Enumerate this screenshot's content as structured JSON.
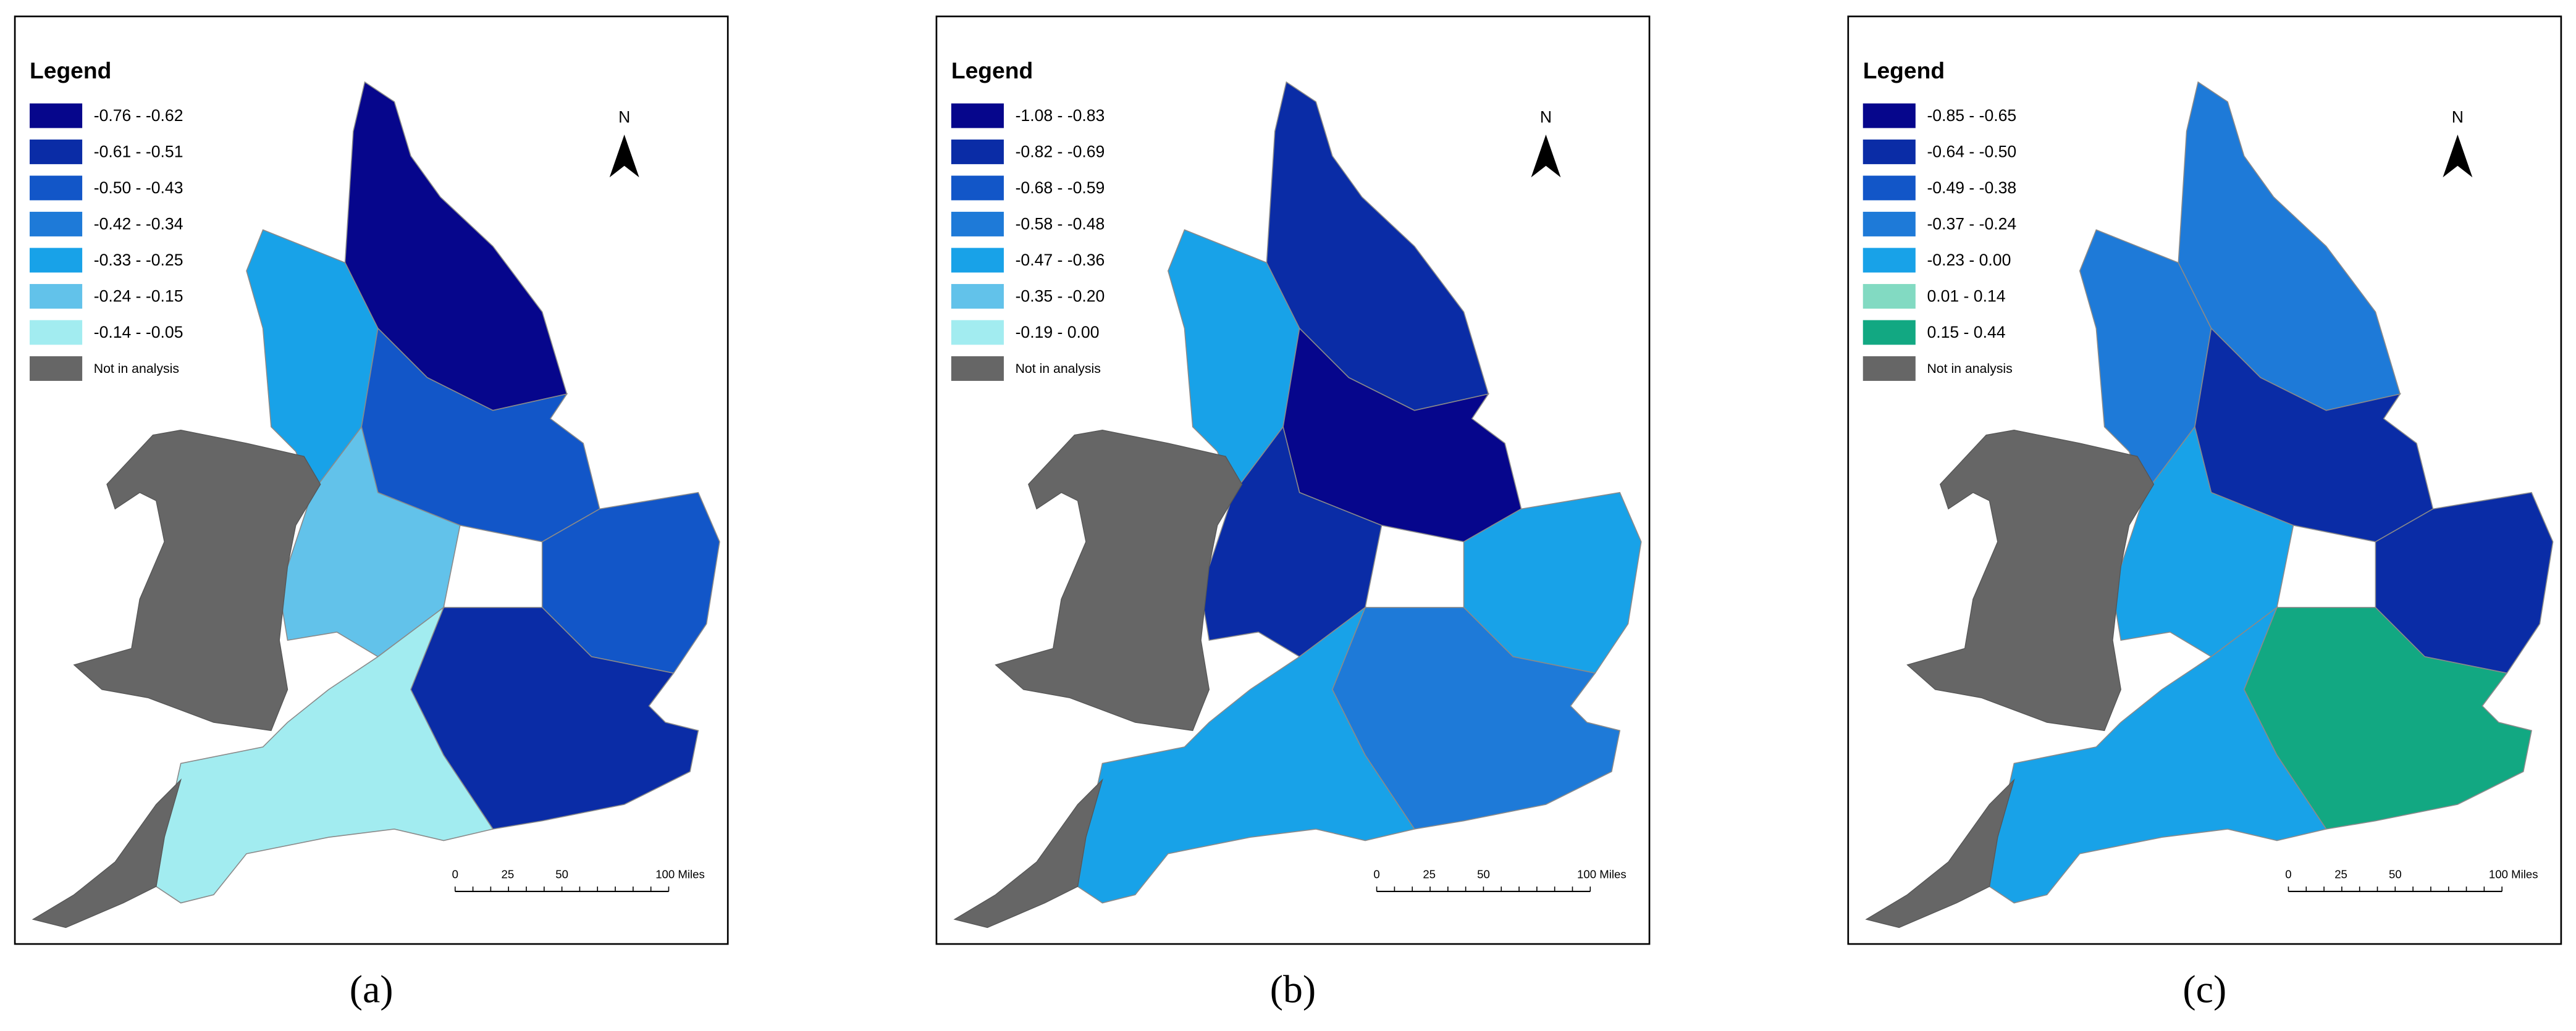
{
  "panels": [
    {
      "caption": "(a)",
      "legend_title": "Legend",
      "north": "N",
      "legend": [
        {
          "label": "-0.76 - -0.62",
          "color": "#06068c"
        },
        {
          "label": "-0.61 - -0.51",
          "color": "#0a2ca6"
        },
        {
          "label": "-0.50 - -0.43",
          "color": "#1256c8"
        },
        {
          "label": "-0.42 - -0.34",
          "color": "#1e7ad8"
        },
        {
          "label": "-0.33 - -0.25",
          "color": "#18a2e8"
        },
        {
          "label": "-0.24 - -0.15",
          "color": "#62c2ea"
        },
        {
          "label": "-0.14 - -0.05",
          "color": "#a2ecf0"
        },
        {
          "label": "Not in analysis",
          "color": "#666666"
        }
      ],
      "scale_labels": [
        "0",
        "25",
        "50",
        "100 Miles"
      ]
    },
    {
      "caption": "(b)",
      "legend_title": "Legend",
      "north": "N",
      "legend": [
        {
          "label": "-1.08 - -0.83",
          "color": "#06068c"
        },
        {
          "label": "-0.82 - -0.69",
          "color": "#0a2ca6"
        },
        {
          "label": "-0.68 - -0.59",
          "color": "#1256c8"
        },
        {
          "label": "-0.58 - -0.48",
          "color": "#1e7ad8"
        },
        {
          "label": "-0.47 - -0.36",
          "color": "#18a2e8"
        },
        {
          "label": "-0.35 - -0.20",
          "color": "#62c2ea"
        },
        {
          "label": "-0.19 - 0.00",
          "color": "#a2ecf0"
        },
        {
          "label": "Not in analysis",
          "color": "#666666"
        }
      ],
      "scale_labels": [
        "0",
        "25",
        "50",
        "100 Miles"
      ]
    },
    {
      "caption": "(c)",
      "legend_title": "Legend",
      "north": "N",
      "legend": [
        {
          "label": "-0.85 - -0.65",
          "color": "#06068c"
        },
        {
          "label": "-0.64 - -0.50",
          "color": "#0a2ca6"
        },
        {
          "label": "-0.49 - -0.38",
          "color": "#1256c8"
        },
        {
          "label": "-0.37 - -0.24",
          "color": "#1e7ad8"
        },
        {
          "label": "-0.23 - 0.00",
          "color": "#18a2e8"
        },
        {
          "label": "0.01 - 0.14",
          "color": "#82dac2"
        },
        {
          "label": "0.15 - 0.44",
          "color": "#12a882"
        },
        {
          "label": "Not in analysis",
          "color": "#666666"
        }
      ],
      "scale_labels": [
        "0",
        "25",
        "50",
        "100 Miles"
      ]
    }
  ]
}
